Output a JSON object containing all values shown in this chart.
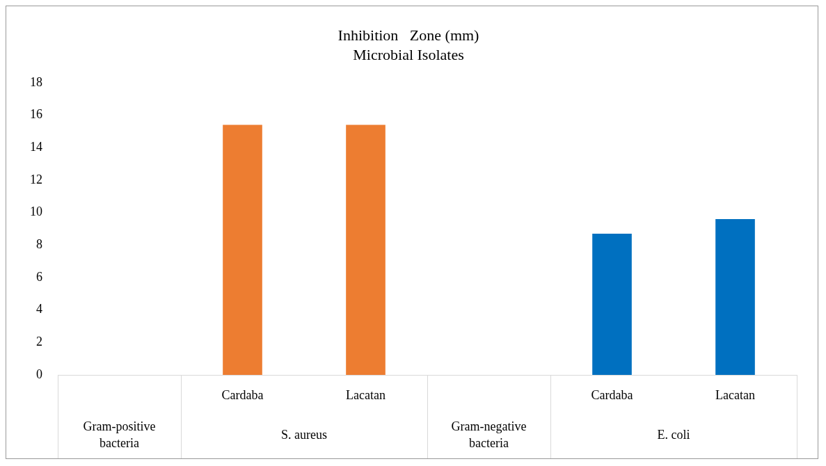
{
  "chart_data": {
    "type": "bar",
    "title": "Inhibition   Zone (mm)",
    "subtitle": "Microbial Isolates",
    "categories": [
      null,
      "Cardaba",
      "Lacatan",
      null,
      "Cardaba",
      "Lacatan"
    ],
    "values": [
      null,
      15.4,
      15.4,
      null,
      8.7,
      9.6
    ],
    "colors": [
      "#ed7d31",
      "#ed7d31",
      "#ed7d31",
      "#0070c0",
      "#0070c0",
      "#0070c0"
    ],
    "ylim": [
      0,
      18
    ],
    "yticks": [
      0,
      2,
      4,
      6,
      8,
      10,
      12,
      14,
      16,
      18
    ],
    "annotations": [
      "Gram-positive bacteria",
      "S. aureus",
      "Gram-negative bacteria",
      "E. coli"
    ]
  }
}
